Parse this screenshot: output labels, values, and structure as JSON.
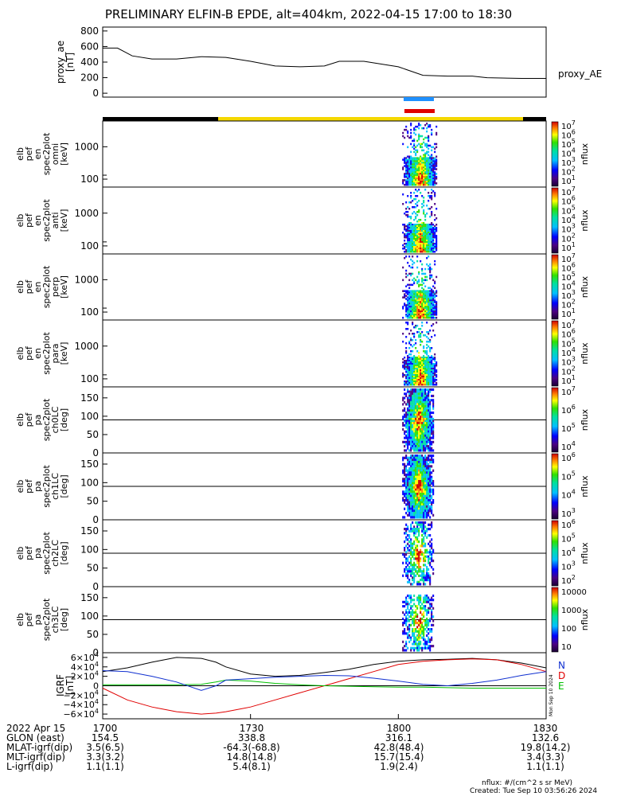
{
  "title": "PRELIMINARY ELFIN-B EPDE, alt=404km, 2022-04-15 17:00 to 18:30",
  "colors": {
    "orbit_bar_dark": "#000000",
    "orbit_bar_sci": "#f5d800",
    "marker_top": "#1e90ff",
    "marker_bottom": "#e00000",
    "trace_black": "#000000",
    "trace_blue": "#1030d0",
    "trace_red": "#e00000",
    "trace_green": "#00c000"
  },
  "chart_data": [
    {
      "type": "line",
      "panel": "proxy_ae",
      "ylabel_lines": [
        "proxy_ae",
        "[nT]"
      ],
      "yticks": [
        "800",
        "600",
        "400",
        "200",
        "0"
      ],
      "ylim": [
        -50,
        850
      ],
      "series_label": "proxy_AE",
      "x": [
        0,
        3,
        6,
        10,
        15,
        20,
        25,
        30,
        35,
        40,
        45,
        48,
        53,
        60,
        65,
        70,
        75,
        78,
        85,
        90
      ],
      "values": [
        580,
        580,
        480,
        440,
        440,
        470,
        460,
        410,
        350,
        340,
        350,
        410,
        410,
        340,
        230,
        220,
        220,
        200,
        190,
        190
      ]
    },
    {
      "type": "heatmap",
      "panel": "spec-omni",
      "ylabel_lines": [
        "elb",
        "pef",
        "en",
        "spec2plot",
        "omni",
        "[keV]"
      ],
      "yticks": [
        "1000",
        "100"
      ],
      "yscale": "log",
      "cbar_ticks": [
        "10^7",
        "10^6",
        "10^5",
        "10^4",
        "10^3",
        "10^2",
        "10^1"
      ],
      "cbar_label": "nflux"
    },
    {
      "type": "heatmap",
      "panel": "spec-anti",
      "ylabel_lines": [
        "elb",
        "pef",
        "en",
        "spec2plot",
        "anti",
        "[keV]"
      ],
      "yticks": [
        "1000",
        "100"
      ],
      "yscale": "log",
      "cbar_ticks": [
        "10^7",
        "10^6",
        "10^5",
        "10^4",
        "10^3",
        "10^2",
        "10^1"
      ],
      "cbar_label": "nflux"
    },
    {
      "type": "heatmap",
      "panel": "spec-perp",
      "ylabel_lines": [
        "elb",
        "pef",
        "en",
        "spec2plot",
        "perp",
        "[keV]"
      ],
      "yticks": [
        "1000",
        "100"
      ],
      "yscale": "log",
      "cbar_ticks": [
        "10^7",
        "10^6",
        "10^5",
        "10^4",
        "10^3",
        "10^2",
        "10^1"
      ],
      "cbar_label": "nflux"
    },
    {
      "type": "heatmap",
      "panel": "spec-para",
      "ylabel_lines": [
        "elb",
        "pef",
        "en",
        "spec2plot",
        "para",
        "[keV]"
      ],
      "yticks": [
        "1000",
        "100"
      ],
      "yscale": "log",
      "cbar_ticks": [
        "10^7",
        "10^6",
        "10^5",
        "10^4",
        "10^3",
        "10^2",
        "10^1"
      ],
      "cbar_label": "nflux"
    },
    {
      "type": "heatmap",
      "panel": "pa-ch0",
      "ylabel_lines": [
        "elb",
        "pef",
        "pa",
        "spec2plot",
        "ch0LC",
        "[deg]"
      ],
      "yticks": [
        "150",
        "100",
        "50",
        "0"
      ],
      "ylim": [
        0,
        180
      ],
      "cbar_ticks": [
        "10^7",
        "10^6",
        "10^5",
        "10^4"
      ],
      "cbar_label": "nflux"
    },
    {
      "type": "heatmap",
      "panel": "pa-ch1",
      "ylabel_lines": [
        "elb",
        "pef",
        "pa",
        "spec2plot",
        "ch1LC",
        "[deg]"
      ],
      "yticks": [
        "150",
        "100",
        "50",
        "0"
      ],
      "ylim": [
        0,
        180
      ],
      "cbar_ticks": [
        "10^6",
        "10^5",
        "10^4",
        "10^3"
      ],
      "cbar_label": "nflux"
    },
    {
      "type": "heatmap",
      "panel": "pa-ch2",
      "ylabel_lines": [
        "elb",
        "pef",
        "pa",
        "spec2plot",
        "ch2LC",
        "[deg]"
      ],
      "yticks": [
        "150",
        "100",
        "50",
        "0"
      ],
      "ylim": [
        0,
        180
      ],
      "cbar_ticks": [
        "10^6",
        "10^5",
        "10^4",
        "10^3",
        "10^2"
      ],
      "cbar_label": "nflux"
    },
    {
      "type": "heatmap",
      "panel": "pa-ch3",
      "ylabel_lines": [
        "elb",
        "pef",
        "pa",
        "spec2plot",
        "ch3LC",
        "[deg]"
      ],
      "yticks": [
        "150",
        "100",
        "50",
        "0"
      ],
      "ylim": [
        0,
        180
      ],
      "cbar_ticks": [
        "10000",
        "1000",
        "100",
        "10"
      ],
      "cbar_label": "nflux"
    },
    {
      "type": "line",
      "panel": "igrf",
      "ylabel_lines": [
        "IGRF",
        "[nT]"
      ],
      "yticks": [
        "6×10^4",
        "4×10^4",
        "2×10^4",
        "0",
        "−2×10^4",
        "−4×10^4",
        "−6×10^4"
      ],
      "ylim": [
        -70000,
        70000
      ],
      "legend": [
        "N",
        "D",
        "E"
      ],
      "x": [
        0,
        5,
        10,
        15,
        20,
        23,
        25,
        30,
        35,
        40,
        45,
        50,
        55,
        60,
        65,
        70,
        75,
        80,
        85,
        90
      ],
      "series": [
        {
          "name": "N",
          "color": "trace_black",
          "values": [
            30000,
            38000,
            50000,
            60000,
            58000,
            50000,
            40000,
            25000,
            20000,
            22000,
            28000,
            35000,
            45000,
            52000,
            55000,
            56000,
            58000,
            55000,
            48000,
            38000
          ]
        },
        {
          "name": "D",
          "color": "trace_red",
          "values": [
            -5000,
            -30000,
            -45000,
            -55000,
            -60000,
            -58000,
            -55000,
            -45000,
            -30000,
            -15000,
            0,
            15000,
            30000,
            45000,
            52000,
            55000,
            57000,
            55000,
            45000,
            30000
          ]
        },
        {
          "name": "E",
          "color": "trace_green",
          "values": [
            2000,
            2000,
            2000,
            2000,
            3000,
            8000,
            12000,
            10000,
            5000,
            2000,
            0,
            -1000,
            -2000,
            -3000,
            -3000,
            -4000,
            -5000,
            -5000,
            -5000,
            -5000
          ]
        },
        {
          "name": "",
          "color": "trace_blue",
          "values": [
            32000,
            30000,
            20000,
            8000,
            -10000,
            0,
            12000,
            15000,
            18000,
            20000,
            22000,
            21000,
            16000,
            10000,
            3000,
            0,
            5000,
            12000,
            22000,
            30000
          ]
        }
      ]
    }
  ],
  "rotated_stamp": "Mon Sep 10 2024",
  "footer": {
    "rows": [
      {
        "label": "2022 Apr 15",
        "values": [
          "1700",
          "1730",
          "1800",
          "1830"
        ]
      },
      {
        "label": "GLON (east)",
        "values": [
          "154.5",
          "338.8",
          "316.1",
          "132.6"
        ]
      },
      {
        "label": "MLAT-igrf(dip)",
        "values": [
          "3.5(6.5)",
          "-64.3(-68.8)",
          "42.8(48.4)",
          "19.8(14.2)"
        ]
      },
      {
        "label": "MLT-igrf(dip)",
        "values": [
          "3.3(3.2)",
          "14.8(14.8)",
          "15.7(15.4)",
          "3.4(3.3)"
        ]
      },
      {
        "label": "L-igrf(dip)",
        "values": [
          "1.1(1.1)",
          "5.4(8.1)",
          "1.9(2.4)",
          "1.1(1.1)"
        ]
      }
    ],
    "units": "nflux: #/(cm^2 s sr MeV)",
    "created": "Created: Tue Sep 10 03:56:26 2024"
  }
}
